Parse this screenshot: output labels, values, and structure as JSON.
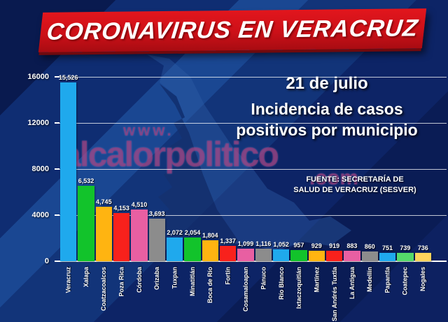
{
  "banner": {
    "title": "CORONAVIRUS EN VERACRUZ"
  },
  "subtitle": {
    "date": "21 de julio",
    "line1": "Incidencia de casos",
    "line2": "positivos por municipio"
  },
  "source": {
    "line1": "FUENTE: SECRETARÍA DE",
    "line2": "SALUD DE VERACRUZ (SESVER)"
  },
  "watermark": {
    "prefix": "www.",
    "name": "alcalorpolitico",
    "suffix": ".com"
  },
  "colors": {
    "banner_red": "#cc1018",
    "background_blue": "#10266b",
    "stripe_dark_blue": "#091a4f",
    "stripe_light_blue": "#1a4792",
    "map_blue": "#2e5ea8",
    "grid_white": "#ffffff",
    "watermark_purple": "#9e3474"
  },
  "chart_data": {
    "type": "bar",
    "title": "Incidencia de casos positivos por municipio",
    "date": "21 de julio",
    "categories": [
      "Veracruz",
      "Xalapa",
      "Coatzacoalcos",
      "Poza Rica",
      "Córdoba",
      "Orizaba",
      "Tuxpan",
      "Minatitlán",
      "Boca de Río",
      "Fortín",
      "Cosamaloapan",
      "Pánuco",
      "Río Blanco",
      "Ixtaczoquitlán",
      "Martínez",
      "San Andrés Tuxtla",
      "La Antigua",
      "Medellín",
      "Papantla",
      "Coatepec",
      "Nogales"
    ],
    "values": [
      15526,
      6532,
      4745,
      4153,
      4510,
      3693,
      2072,
      2054,
      1804,
      1337,
      1099,
      1116,
      1052,
      957,
      929,
      919,
      883,
      860,
      751,
      739,
      736
    ],
    "value_labels": [
      "15,526",
      "6,532",
      "4,745",
      "4,153",
      "4,510",
      "3,693",
      "2,072",
      "2,054",
      "1,804",
      "1,337",
      "1,099",
      "1,116",
      "1,052",
      "957",
      "929",
      "919",
      "883",
      "860",
      "751",
      "739",
      "736"
    ],
    "bar_colors": [
      "#1fa9ed",
      "#12c32b",
      "#ffb411",
      "#f8211c",
      "#e85fa2",
      "#8c8c8c",
      "#1fa9ed",
      "#12c32b",
      "#ffb411",
      "#f8211c",
      "#e85fa2",
      "#8c8c8c",
      "#1fa9ed",
      "#12c32b",
      "#ffb411",
      "#f8211c",
      "#e85fa2",
      "#8c8c8c",
      "#1fa9ed",
      "#55d96a",
      "#ffd35c"
    ],
    "y_ticks": [
      "16000",
      "12000",
      "8000",
      "4000",
      "0"
    ],
    "ylim": [
      0,
      16000
    ],
    "xlabel": "",
    "ylabel": "",
    "grid": true,
    "legend": false
  }
}
